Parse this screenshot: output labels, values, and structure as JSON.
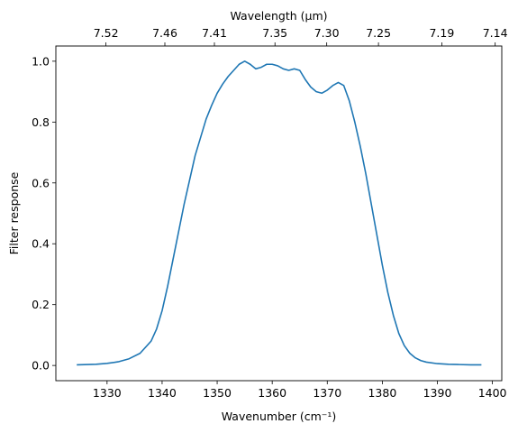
{
  "chart_data": {
    "type": "line",
    "xlabel": "Wavenumber (cm⁻¹)",
    "ylabel": "Filter response",
    "top_xlabel": "Wavelength (μm)",
    "xlim": [
      1320.7,
      1401.7
    ],
    "ylim": [
      -0.05,
      1.05
    ],
    "x_ticks": [
      1330,
      1340,
      1350,
      1360,
      1370,
      1380,
      1390,
      1400
    ],
    "y_ticks": [
      0.0,
      0.2,
      0.4,
      0.6,
      0.8,
      1.0
    ],
    "y_tick_labels": [
      "0.0",
      "0.2",
      "0.4",
      "0.6",
      "0.8",
      "1.0"
    ],
    "top_ticks": [
      {
        "label": "7.52",
        "wavenumber": 1329.8
      },
      {
        "label": "7.46",
        "wavenumber": 1340.5
      },
      {
        "label": "7.41",
        "wavenumber": 1349.5
      },
      {
        "label": "7.35",
        "wavenumber": 1360.5
      },
      {
        "label": "7.30",
        "wavenumber": 1369.9
      },
      {
        "label": "7.25",
        "wavenumber": 1379.3
      },
      {
        "label": "7.19",
        "wavenumber": 1390.8
      },
      {
        "label": "7.14",
        "wavenumber": 1400.5
      }
    ],
    "line_color": "#1f77b4",
    "grid": false,
    "series": [
      {
        "x": [
          1324.5,
          1328,
          1330,
          1332,
          1334,
          1336,
          1338,
          1339,
          1340,
          1341,
          1342,
          1343,
          1344,
          1345,
          1346,
          1347,
          1348,
          1349,
          1350,
          1351,
          1352,
          1353,
          1354,
          1355,
          1356,
          1357,
          1358,
          1359,
          1360,
          1361,
          1362,
          1363,
          1364,
          1365,
          1366,
          1367,
          1368,
          1369,
          1370,
          1371,
          1372,
          1373,
          1374,
          1375,
          1376,
          1377,
          1378,
          1379,
          1380,
          1381,
          1382,
          1383,
          1384,
          1385,
          1386,
          1387,
          1388,
          1390,
          1392,
          1394,
          1396,
          1398
        ],
        "y": [
          0.002,
          0.004,
          0.007,
          0.012,
          0.022,
          0.04,
          0.08,
          0.12,
          0.18,
          0.26,
          0.35,
          0.44,
          0.53,
          0.61,
          0.69,
          0.75,
          0.81,
          0.855,
          0.895,
          0.925,
          0.95,
          0.97,
          0.99,
          1.0,
          0.99,
          0.975,
          0.98,
          0.99,
          0.99,
          0.985,
          0.975,
          0.97,
          0.975,
          0.97,
          0.94,
          0.915,
          0.9,
          0.895,
          0.905,
          0.92,
          0.93,
          0.92,
          0.87,
          0.8,
          0.72,
          0.63,
          0.53,
          0.43,
          0.33,
          0.24,
          0.165,
          0.105,
          0.065,
          0.04,
          0.025,
          0.016,
          0.011,
          0.006,
          0.004,
          0.003,
          0.002,
          0.002
        ]
      }
    ]
  }
}
